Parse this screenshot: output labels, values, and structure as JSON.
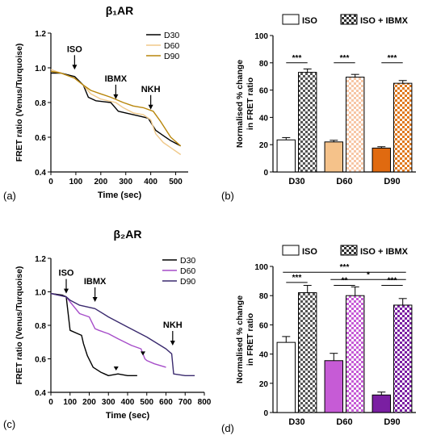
{
  "chart_data": [
    {
      "panel": "(a)",
      "type": "line",
      "title": "β₁AR",
      "xlabel": "Time (sec)",
      "ylabel": "FRET ratio (Venus/Turquoise)",
      "xlim": [
        0,
        550
      ],
      "ylim": [
        0.4,
        1.2
      ],
      "xticks": [
        0,
        100,
        200,
        300,
        400,
        500
      ],
      "yticks": [
        0.4,
        0.6,
        0.8,
        1.0,
        1.2
      ],
      "grid": false,
      "legend_position": "top-right",
      "series": [
        {
          "name": "D30",
          "color": "#000000",
          "x": [
            0,
            40,
            95,
            130,
            150,
            180,
            240,
            270,
            300,
            330,
            360,
            390,
            420,
            450,
            480,
            520
          ],
          "y": [
            0.97,
            0.97,
            0.95,
            0.9,
            0.83,
            0.81,
            0.8,
            0.75,
            0.74,
            0.73,
            0.72,
            0.71,
            0.64,
            0.61,
            0.58,
            0.55
          ]
        },
        {
          "name": "D60",
          "color": "#F0C98A",
          "x": [
            0,
            40,
            95,
            130,
            160,
            200,
            260,
            290,
            330,
            370,
            400,
            420,
            450,
            480,
            520
          ],
          "y": [
            0.99,
            0.97,
            0.94,
            0.9,
            0.85,
            0.82,
            0.8,
            0.77,
            0.74,
            0.73,
            0.7,
            0.62,
            0.57,
            0.54,
            0.5
          ]
        },
        {
          "name": "D90",
          "color": "#B8860B",
          "x": [
            0,
            40,
            95,
            130,
            160,
            200,
            240,
            290,
            330,
            370,
            410,
            440,
            480,
            520
          ],
          "y": [
            0.98,
            0.97,
            0.94,
            0.9,
            0.87,
            0.85,
            0.83,
            0.8,
            0.78,
            0.77,
            0.75,
            0.69,
            0.6,
            0.55
          ]
        }
      ],
      "annotations": [
        {
          "label": "ISO",
          "x": 95,
          "y": 0.98
        },
        {
          "label": "IBMX",
          "x": 260,
          "y": 0.81
        },
        {
          "label": "NKH",
          "x": 400,
          "y": 0.75
        }
      ]
    },
    {
      "panel": "(b)",
      "type": "bar",
      "ylabel": "Normalised % change in FRET ratio",
      "ylim": [
        0,
        100
      ],
      "yticks": [
        0,
        20,
        40,
        60,
        80,
        100
      ],
      "categories": [
        "D30",
        "D60",
        "D90"
      ],
      "legend_position": "top",
      "series": [
        {
          "name": "ISO",
          "values": [
            23.5,
            22,
            17.5
          ],
          "errors": [
            1.7,
            1.2,
            1.0
          ],
          "colors": [
            "#ffffff",
            "#F5C28A",
            "#E06A10"
          ],
          "pattern": "solid"
        },
        {
          "name": "ISO + IBMX",
          "values": [
            73,
            69.5,
            65
          ],
          "errors": [
            2.5,
            2.0,
            2.0
          ],
          "colors": [
            "#F7C6A5",
            "#F7C6A5",
            "#E07A20"
          ],
          "pattern": "checker"
        }
      ],
      "significance": [
        {
          "label": "***",
          "category": "D30",
          "y": 80
        },
        {
          "label": "***",
          "category": "D60",
          "y": 80
        },
        {
          "label": "***",
          "category": "D90",
          "y": 80
        }
      ]
    },
    {
      "panel": "(c)",
      "type": "line",
      "title": "β₂AR",
      "xlabel": "Time (sec)",
      "ylabel": "FRET ratio (Venus/Turquoise)",
      "xlim": [
        0,
        800
      ],
      "ylim": [
        0.4,
        1.2
      ],
      "xticks": [
        0,
        100,
        200,
        300,
        400,
        500,
        600,
        700,
        800
      ],
      "yticks": [
        0.4,
        0.6,
        0.8,
        1.0,
        1.2
      ],
      "grid": false,
      "legend_position": "top-right",
      "series": [
        {
          "name": "D30",
          "color": "#000000",
          "x": [
            0,
            60,
            80,
            100,
            140,
            160,
            170,
            190,
            220,
            260,
            300,
            350,
            400,
            450
          ],
          "y": [
            0.99,
            0.98,
            0.97,
            0.77,
            0.75,
            0.74,
            0.69,
            0.62,
            0.55,
            0.52,
            0.5,
            0.51,
            0.5,
            0.5
          ]
        },
        {
          "name": "D60",
          "color": "#A64DC9",
          "x": [
            0,
            80,
            100,
            150,
            200,
            230,
            250,
            300,
            350,
            420,
            470,
            490,
            500,
            540,
            600
          ],
          "y": [
            0.99,
            0.97,
            0.94,
            0.87,
            0.85,
            0.78,
            0.77,
            0.75,
            0.72,
            0.68,
            0.66,
            0.6,
            0.59,
            0.57,
            0.55
          ]
        },
        {
          "name": "D90",
          "color": "#3A2A6E",
          "x": [
            0,
            80,
            100,
            150,
            230,
            300,
            400,
            500,
            600,
            630,
            640,
            700,
            750
          ],
          "y": [
            0.99,
            0.97,
            0.95,
            0.92,
            0.9,
            0.85,
            0.79,
            0.73,
            0.66,
            0.63,
            0.51,
            0.5,
            0.5
          ]
        }
      ],
      "annotations": [
        {
          "label": "ISO",
          "x": 80,
          "y": 0.98
        },
        {
          "label": "IBMX",
          "x": 230,
          "y": 0.93
        },
        {
          "label": "NKH",
          "x": 635,
          "y": 0.67
        }
      ],
      "arrowheads": [
        {
          "x": 340,
          "y": 0.53
        },
        {
          "x": 480,
          "y": 0.62
        }
      ]
    },
    {
      "panel": "(d)",
      "type": "bar",
      "ylabel": "Normalised % change in FRET ratio",
      "ylim": [
        0,
        100
      ],
      "yticks": [
        0,
        20,
        40,
        60,
        80,
        100
      ],
      "categories": [
        "D30",
        "D60",
        "D90"
      ],
      "legend_position": "top",
      "series": [
        {
          "name": "ISO",
          "values": [
            48,
            35.5,
            12
          ],
          "errors": [
            4.0,
            5.0,
            2.0
          ],
          "colors": [
            "#ffffff",
            "#C65BD6",
            "#7A1FA2"
          ],
          "pattern": "solid"
        },
        {
          "name": "ISO + IBMX",
          "values": [
            82,
            80,
            73.5
          ],
          "errors": [
            5.0,
            6.0,
            4.5
          ],
          "colors": [
            "#cccccc",
            "#C65BD6",
            "#7A1FA2"
          ],
          "pattern": "checker"
        }
      ],
      "significance": [
        {
          "label": "***",
          "from": 0,
          "to": 2,
          "y": 96
        },
        {
          "label": "*",
          "from": 1,
          "to": 2,
          "y": 91
        },
        {
          "label": "***",
          "category": "D30",
          "y": 89
        },
        {
          "label": "**",
          "category": "D60",
          "y": 87
        },
        {
          "label": "***",
          "category": "D90",
          "y": 87
        }
      ]
    }
  ]
}
